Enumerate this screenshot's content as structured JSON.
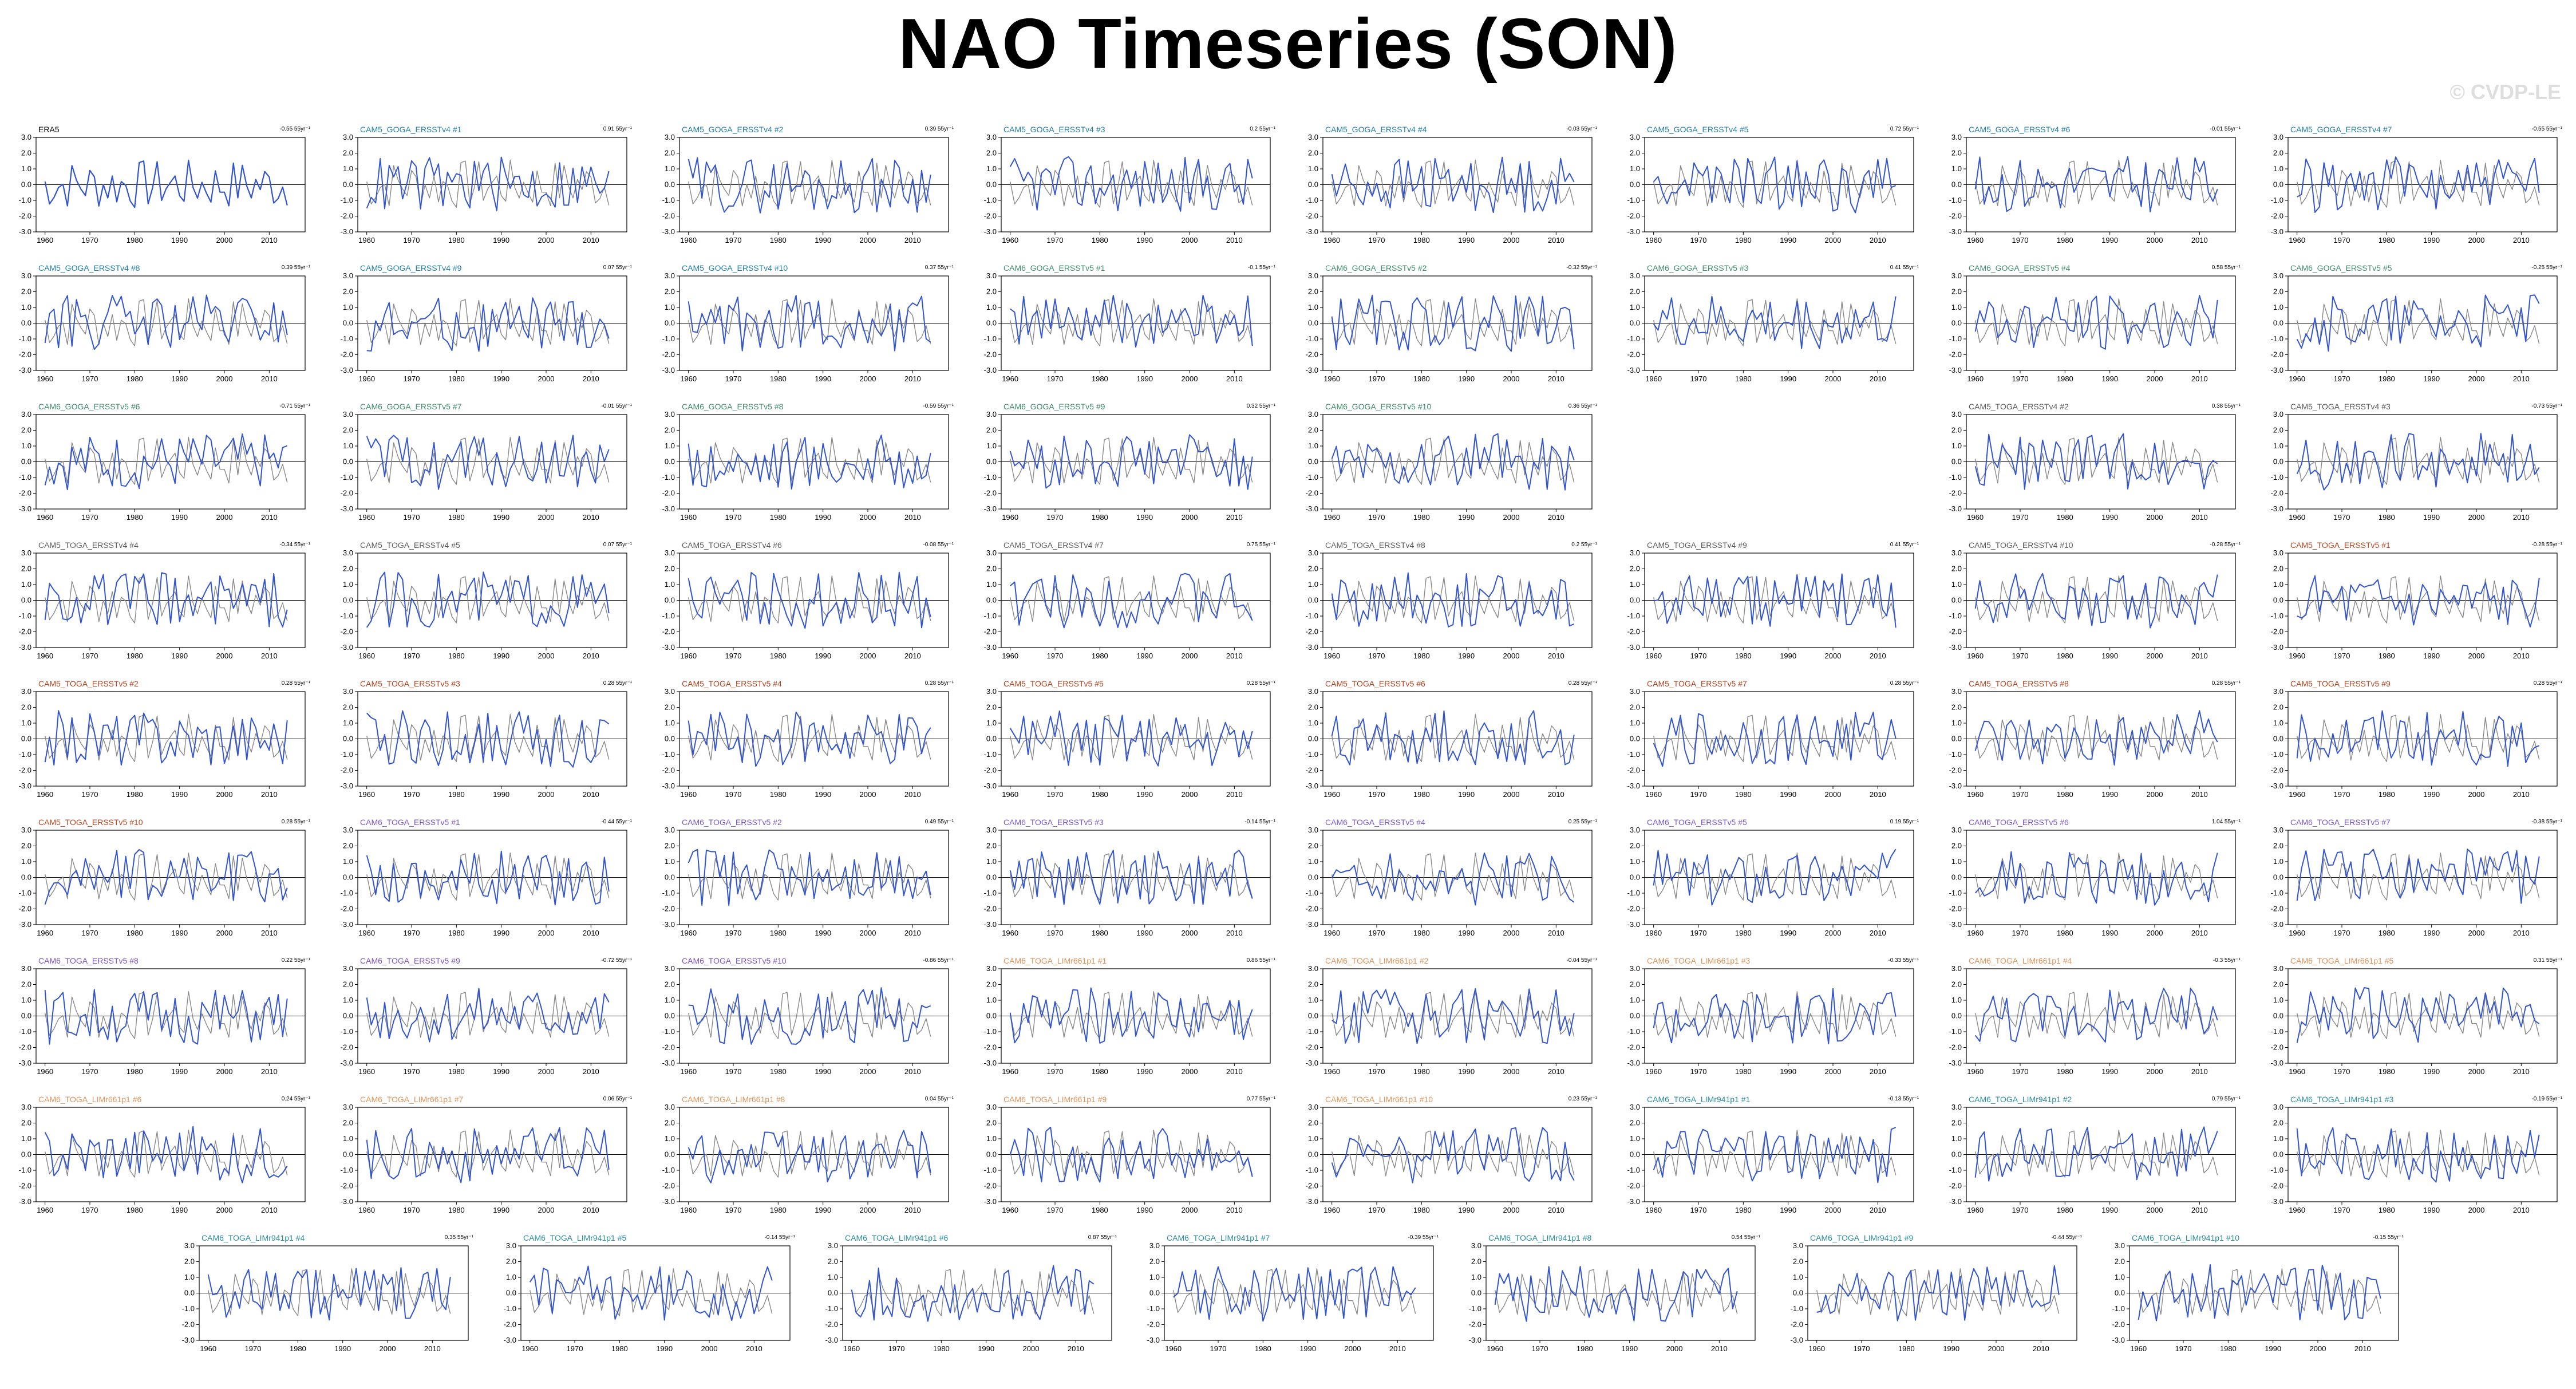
{
  "title": "NAO Timeseries (SON)",
  "watermark": "© CVDP-LE",
  "colors": {
    "observed": "#888888",
    "member": "#3355cc",
    "zero": "#000000"
  },
  "panel_defaults": {
    "type": "line",
    "x_ticks": [
      "1960",
      "1970",
      "1980",
      "1990",
      "2000",
      "2010"
    ],
    "x_range": [
      1958,
      2018
    ],
    "y_ticks": [
      "3.0",
      "2.0",
      "1.0",
      "0.0",
      "-1.0",
      "-2.0",
      "-3.0"
    ],
    "y_range": [
      -3.0,
      3.0
    ]
  },
  "chart_data": [
    {
      "title": "ERA5",
      "title_color": "#000000",
      "trend": "-0.55 55yr⁻¹",
      "obs_only": true
    },
    {
      "title": "CAM5_GOGA_ERSSTv4 #1",
      "title_color": "#1f7fa8",
      "trend": "0.91 55yr⁻¹"
    },
    {
      "title": "CAM5_GOGA_ERSSTv4 #2",
      "title_color": "#1f7fa8",
      "trend": "0.39 55yr⁻¹"
    },
    {
      "title": "CAM5_GOGA_ERSSTv4 #3",
      "title_color": "#1f7fa8",
      "trend": "0.2 55yr⁻¹"
    },
    {
      "title": "CAM5_GOGA_ERSSTv4 #4",
      "title_color": "#1f7fa8",
      "trend": "-0.03 55yr⁻¹"
    },
    {
      "title": "CAM5_GOGA_ERSSTv4 #5",
      "title_color": "#1f7fa8",
      "trend": "0.72 55yr⁻¹"
    },
    {
      "title": "CAM5_GOGA_ERSSTv4 #6",
      "title_color": "#1f7fa8",
      "trend": "-0.01 55yr⁻¹"
    },
    {
      "title": "CAM5_GOGA_ERSSTv4 #7",
      "title_color": "#1f7fa8",
      "trend": "-0.55 55yr⁻¹"
    },
    {
      "title": "CAM5_GOGA_ERSSTv4 #8",
      "title_color": "#1f7fa8",
      "trend": "0.39 55yr⁻¹"
    },
    {
      "title": "CAM5_GOGA_ERSSTv4 #9",
      "title_color": "#1f7fa8",
      "trend": "0.07 55yr⁻¹"
    },
    {
      "title": "CAM5_GOGA_ERSSTv4 #10",
      "title_color": "#1f7fa8",
      "trend": "0.37 55yr⁻¹"
    },
    {
      "title": "CAM6_GOGA_ERSSTv5 #1",
      "title_color": "#3f8f6a",
      "trend": "-0.1 55yr⁻¹"
    },
    {
      "title": "CAM6_GOGA_ERSSTv5 #2",
      "title_color": "#3f8f6a",
      "trend": "-0.32 55yr⁻¹"
    },
    {
      "title": "CAM6_GOGA_ERSSTv5 #3",
      "title_color": "#3f8f6a",
      "trend": "0.41 55yr⁻¹"
    },
    {
      "title": "CAM6_GOGA_ERSSTv5 #4",
      "title_color": "#3f8f6a",
      "trend": "0.58 55yr⁻¹"
    },
    {
      "title": "CAM6_GOGA_ERSSTv5 #5",
      "title_color": "#3f8f6a",
      "trend": "-0.25 55yr⁻¹"
    },
    {
      "title": "CAM6_GOGA_ERSSTv5 #6",
      "title_color": "#3f8f6a",
      "trend": "-0.71 55yr⁻¹"
    },
    {
      "title": "CAM6_GOGA_ERSSTv5 #7",
      "title_color": "#3f8f6a",
      "trend": "-0.01 55yr⁻¹"
    },
    {
      "title": "CAM6_GOGA_ERSSTv5 #8",
      "title_color": "#3f8f6a",
      "trend": "-0.59 55yr⁻¹"
    },
    {
      "title": "CAM6_GOGA_ERSSTv5 #9",
      "title_color": "#3f8f6a",
      "trend": "0.32 55yr⁻¹"
    },
    {
      "title": "CAM6_GOGA_ERSSTv5 #10",
      "title_color": "#3f8f6a",
      "trend": "0.36 55yr⁻¹"
    },
    {
      "title": "CAM5_TOGA_ERSSTv4 #2",
      "title_color": "#5a5a5a",
      "trend": "0.38 55yr⁻¹"
    },
    {
      "title": "CAM5_TOGA_ERSSTv4 #3",
      "title_color": "#5a5a5a",
      "trend": "-0.73 55yr⁻¹"
    },
    {
      "title": "CAM5_TOGA_ERSSTv4 #4",
      "title_color": "#5a5a5a",
      "trend": "-0.34 55yr⁻¹"
    },
    {
      "title": "CAM5_TOGA_ERSSTv4 #5",
      "title_color": "#5a5a5a",
      "trend": "0.07 55yr⁻¹"
    },
    {
      "title": "CAM5_TOGA_ERSSTv4 #6",
      "title_color": "#5a5a5a",
      "trend": "-0.08 55yr⁻¹"
    },
    {
      "title": "CAM5_TOGA_ERSSTv4 #7",
      "title_color": "#5a5a5a",
      "trend": "0.75 55yr⁻¹"
    },
    {
      "title": "CAM5_TOGA_ERSSTv4 #8",
      "title_color": "#5a5a5a",
      "trend": "0.2 55yr⁻¹"
    },
    {
      "title": "CAM5_TOGA_ERSSTv4 #9",
      "title_color": "#5a5a5a",
      "trend": "0.41 55yr⁻¹"
    },
    {
      "title": "CAM5_TOGA_ERSSTv4 #10",
      "title_color": "#5a5a5a",
      "trend": "-0.28 55yr⁻¹"
    },
    {
      "title": "CAM5_TOGA_ERSSTv5 #1",
      "title_color": "#b8441f",
      "trend": "-0.28 55yr⁻¹"
    },
    {
      "title": "CAM5_TOGA_ERSSTv5 #2",
      "title_color": "#b8441f",
      "trend": "0.28 55yr⁻¹"
    },
    {
      "title": "CAM5_TOGA_ERSSTv5 #3",
      "title_color": "#b8441f",
      "trend": "0.28 55yr⁻¹"
    },
    {
      "title": "CAM5_TOGA_ERSSTv5 #4",
      "title_color": "#b8441f",
      "trend": "0.28 55yr⁻¹"
    },
    {
      "title": "CAM5_TOGA_ERSSTv5 #5",
      "title_color": "#b8441f",
      "trend": "0.28 55yr⁻¹"
    },
    {
      "title": "CAM5_TOGA_ERSSTv5 #6",
      "title_color": "#b8441f",
      "trend": "0.28 55yr⁻¹"
    },
    {
      "title": "CAM5_TOGA_ERSSTv5 #7",
      "title_color": "#b8441f",
      "trend": "0.28 55yr⁻¹"
    },
    {
      "title": "CAM5_TOGA_ERSSTv5 #8",
      "title_color": "#b8441f",
      "trend": "0.28 55yr⁻¹"
    },
    {
      "title": "CAM5_TOGA_ERSSTv5 #9",
      "title_color": "#b8441f",
      "trend": "0.28 55yr⁻¹"
    },
    {
      "title": "CAM5_TOGA_ERSSTv5 #10",
      "title_color": "#b8441f",
      "trend": "0.28 55yr⁻¹"
    },
    {
      "title": "CAM6_TOGA_ERSSTv5 #1",
      "title_color": "#7a55c8",
      "trend": "-0.44 55yr⁻¹"
    },
    {
      "title": "CAM6_TOGA_ERSSTv5 #2",
      "title_color": "#7a55c8",
      "trend": "0.49 55yr⁻¹"
    },
    {
      "title": "CAM6_TOGA_ERSSTv5 #3",
      "title_color": "#7a55c8",
      "trend": "-0.14 55yr⁻¹"
    },
    {
      "title": "CAM6_TOGA_ERSSTv5 #4",
      "title_color": "#7a55c8",
      "trend": "0.25 55yr⁻¹"
    },
    {
      "title": "CAM6_TOGA_ERSSTv5 #5",
      "title_color": "#7a55c8",
      "trend": "0.19 55yr⁻¹"
    },
    {
      "title": "CAM6_TOGA_ERSSTv5 #6",
      "title_color": "#7a55c8",
      "trend": "1.04 55yr⁻¹"
    },
    {
      "title": "CAM6_TOGA_ERSSTv5 #7",
      "title_color": "#7a55c8",
      "trend": "-0.38 55yr⁻¹"
    },
    {
      "title": "CAM6_TOGA_ERSSTv5 #8",
      "title_color": "#7a55c8",
      "trend": "0.22 55yr⁻¹"
    },
    {
      "title": "CAM6_TOGA_ERSSTv5 #9",
      "title_color": "#7a55c8",
      "trend": "-0.72 55yr⁻¹"
    },
    {
      "title": "CAM6_TOGA_ERSSTv5 #10",
      "title_color": "#7a55c8",
      "trend": "-0.86 55yr⁻¹"
    },
    {
      "title": "CAM6_TOGA_LIMr661p1 #1",
      "title_color": "#e0945a",
      "trend": "0.86 55yr⁻¹"
    },
    {
      "title": "CAM6_TOGA_LIMr661p1 #2",
      "title_color": "#e0945a",
      "trend": "-0.04 55yr⁻¹"
    },
    {
      "title": "CAM6_TOGA_LIMr661p1 #3",
      "title_color": "#e0945a",
      "trend": "-0.33 55yr⁻¹"
    },
    {
      "title": "CAM6_TOGA_LIMr661p1 #4",
      "title_color": "#e0945a",
      "trend": "-0.3 55yr⁻¹"
    },
    {
      "title": "CAM6_TOGA_LIMr661p1 #5",
      "title_color": "#e0945a",
      "trend": "0.31 55yr⁻¹"
    },
    {
      "title": "CAM6_TOGA_LIMr661p1 #6",
      "title_color": "#e0945a",
      "trend": "0.24 55yr⁻¹"
    },
    {
      "title": "CAM6_TOGA_LIMr661p1 #7",
      "title_color": "#e0945a",
      "trend": "0.06 55yr⁻¹"
    },
    {
      "title": "CAM6_TOGA_LIMr661p1 #8",
      "title_color": "#e0945a",
      "trend": "0.04 55yr⁻¹"
    },
    {
      "title": "CAM6_TOGA_LIMr661p1 #9",
      "title_color": "#e0945a",
      "trend": "0.77 55yr⁻¹"
    },
    {
      "title": "CAM6_TOGA_LIMr661p1 #10",
      "title_color": "#e0945a",
      "trend": "0.23 55yr⁻¹"
    },
    {
      "title": "CAM6_TOGA_LIMr941p1 #1",
      "title_color": "#2a8f9a",
      "trend": "-0.13 55yr⁻¹"
    },
    {
      "title": "CAM6_TOGA_LIMr941p1 #2",
      "title_color": "#2a8f9a",
      "trend": "0.79 55yr⁻¹"
    },
    {
      "title": "CAM6_TOGA_LIMr941p1 #3",
      "title_color": "#2a8f9a",
      "trend": "-0.19 55yr⁻¹"
    },
    {
      "title": "CAM6_TOGA_LIMr941p1 #4",
      "title_color": "#2a8f9a",
      "trend": "0.35 55yr⁻¹"
    },
    {
      "title": "CAM6_TOGA_LIMr941p1 #5",
      "title_color": "#2a8f9a",
      "trend": "-0.14 55yr⁻¹"
    },
    {
      "title": "CAM6_TOGA_LIMr941p1 #6",
      "title_color": "#2a8f9a",
      "trend": "0.87 55yr⁻¹"
    },
    {
      "title": "CAM6_TOGA_LIMr941p1 #7",
      "title_color": "#2a8f9a",
      "trend": "-0.39 55yr⁻¹"
    },
    {
      "title": "CAM6_TOGA_LIMr941p1 #8",
      "title_color": "#2a8f9a",
      "trend": "0.54 55yr⁻¹"
    },
    {
      "title": "CAM6_TOGA_LIMr941p1 #9",
      "title_color": "#2a8f9a",
      "trend": "-0.44 55yr⁻¹"
    },
    {
      "title": "CAM6_TOGA_LIMr941p1 #10",
      "title_color": "#2a8f9a",
      "trend": "-0.15 55yr⁻¹"
    }
  ]
}
